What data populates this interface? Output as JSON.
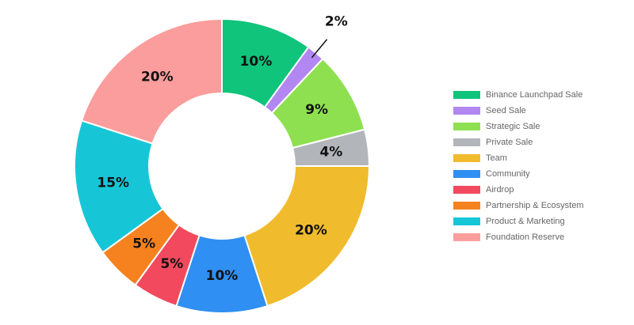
{
  "chart_data": {
    "type": "doughnut",
    "categories": [
      "Binance Launchpad Sale",
      "Seed Sale",
      "Strategic Sale",
      "Private Sale",
      "Team",
      "Community",
      "Airdrop",
      "Partnership & Ecosystem",
      "Product & Marketing",
      "Foundation Reserve"
    ],
    "values": [
      10,
      2,
      9,
      4,
      20,
      10,
      5,
      5,
      15,
      20
    ],
    "value_labels": [
      "10%",
      "2%",
      "9%",
      "4%",
      "20%",
      "10%",
      "5%",
      "5%",
      "15%",
      "20%"
    ],
    "colors": [
      "#10c47c",
      "#b287f2",
      "#8fe051",
      "#b2b5ba",
      "#f0bb2c",
      "#2f8ff2",
      "#f2495f",
      "#f6821f",
      "#17c6d6",
      "#fb9d9c"
    ],
    "legend": "right"
  }
}
